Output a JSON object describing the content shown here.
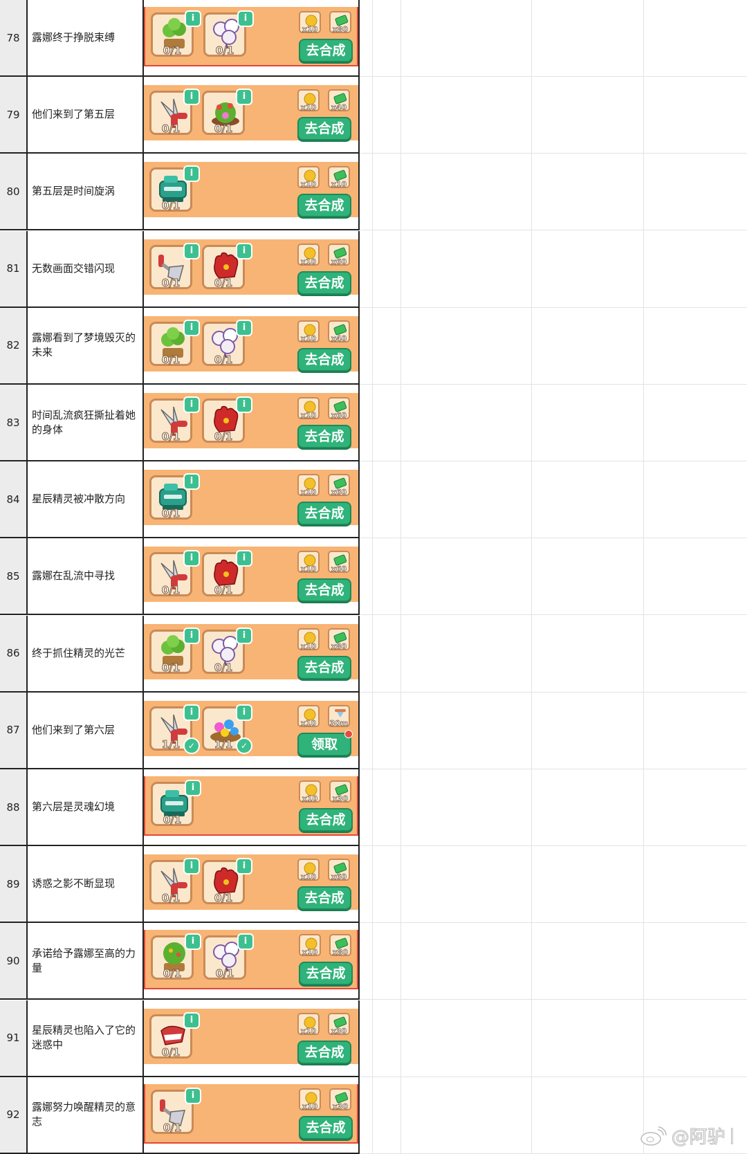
{
  "colors": {
    "panel": "#f8b474",
    "button": "#2fb37a",
    "info_badge": "#3dc08f",
    "alert_border": "#e0473a"
  },
  "rows": [
    {
      "num": "78",
      "title": "露娜终于挣脱束缚",
      "alert": true,
      "items": [
        {
          "icon": "potted-plant",
          "progress": "0/1"
        },
        {
          "icon": "balloons",
          "progress": "0/1"
        }
      ],
      "rewards": [
        {
          "icon": "gold-coin",
          "label": "x10"
        },
        {
          "icon": "cash",
          "label": "x80"
        }
      ],
      "button": "去合成"
    },
    {
      "num": "79",
      "title": "他们来到了第五层",
      "items": [
        {
          "icon": "scissors",
          "progress": "0/1"
        },
        {
          "icon": "flower-bush",
          "progress": "0/1"
        }
      ],
      "rewards": [
        {
          "icon": "gold-coin",
          "label": "x10"
        },
        {
          "icon": "cash",
          "label": "x40"
        }
      ],
      "button": "去合成"
    },
    {
      "num": "80",
      "title": "第五层是时间旋涡",
      "items": [
        {
          "icon": "machine",
          "progress": "0/1"
        }
      ],
      "rewards": [
        {
          "icon": "gold-coin",
          "label": "x10"
        },
        {
          "icon": "cash",
          "label": "x10"
        }
      ],
      "button": "去合成"
    },
    {
      "num": "81",
      "title": "无数画面交错闪现",
      "items": [
        {
          "icon": "rake",
          "progress": "0/1"
        },
        {
          "icon": "glove",
          "progress": "0/1"
        }
      ],
      "rewards": [
        {
          "icon": "gold-coin",
          "label": "x10"
        },
        {
          "icon": "cash",
          "label": "x60"
        }
      ],
      "button": "去合成"
    },
    {
      "num": "82",
      "title": "露娜看到了梦境毁灭的未来",
      "items": [
        {
          "icon": "potted-plant",
          "progress": "0/1"
        },
        {
          "icon": "balloons",
          "progress": "0/1"
        }
      ],
      "rewards": [
        {
          "icon": "gold-coin",
          "label": "x10"
        },
        {
          "icon": "cash",
          "label": "x40"
        }
      ],
      "button": "去合成"
    },
    {
      "num": "83",
      "title": "时间乱流疯狂撕扯着她的身体",
      "items": [
        {
          "icon": "scissors",
          "progress": "0/1"
        },
        {
          "icon": "glove",
          "progress": "0/1"
        }
      ],
      "rewards": [
        {
          "icon": "gold-coin",
          "label": "x10"
        },
        {
          "icon": "cash",
          "label": "x60"
        }
      ],
      "button": "去合成"
    },
    {
      "num": "84",
      "title": "星辰精灵被冲散方向",
      "items": [
        {
          "icon": "machine",
          "progress": "0/1"
        }
      ],
      "rewards": [
        {
          "icon": "gold-coin",
          "label": "x10"
        },
        {
          "icon": "cash",
          "label": "x60"
        }
      ],
      "button": "去合成"
    },
    {
      "num": "85",
      "title": "露娜在乱流中寻找",
      "items": [
        {
          "icon": "scissors",
          "progress": "0/1"
        },
        {
          "icon": "glove",
          "progress": "0/1"
        }
      ],
      "rewards": [
        {
          "icon": "gold-coin",
          "label": "x10"
        },
        {
          "icon": "cash",
          "label": "x60"
        }
      ],
      "button": "去合成"
    },
    {
      "num": "86",
      "title": "终于抓住精灵的光芒",
      "items": [
        {
          "icon": "potted-plant",
          "progress": "0/1"
        },
        {
          "icon": "balloons",
          "progress": "0/1"
        }
      ],
      "rewards": [
        {
          "icon": "gold-coin",
          "label": "x10"
        },
        {
          "icon": "cash",
          "label": "x80"
        }
      ],
      "button": "去合成"
    },
    {
      "num": "87",
      "title": "他们来到了第六层",
      "items": [
        {
          "icon": "scissors",
          "progress": "1/1",
          "done": true
        },
        {
          "icon": "flower-basket",
          "progress": "1/1",
          "done": true
        }
      ],
      "rewards": [
        {
          "icon": "gold-coin",
          "label": "x10"
        },
        {
          "icon": "hourglass",
          "label": "30m"
        }
      ],
      "button": "领取",
      "notify": true
    },
    {
      "num": "88",
      "title": "第六层是灵魂幻境",
      "alert": true,
      "items": [
        {
          "icon": "machine",
          "progress": "0/1"
        }
      ],
      "rewards": [
        {
          "icon": "gold-coin",
          "label": "x10"
        },
        {
          "icon": "cash",
          "label": "x30"
        }
      ],
      "button": "去合成"
    },
    {
      "num": "89",
      "title": "诱惑之影不断显现",
      "items": [
        {
          "icon": "scissors",
          "progress": "0/1"
        },
        {
          "icon": "glove",
          "progress": "0/1"
        }
      ],
      "rewards": [
        {
          "icon": "gold-coin",
          "label": "x10"
        },
        {
          "icon": "cash",
          "label": "x60"
        }
      ],
      "button": "去合成"
    },
    {
      "num": "90",
      "title": "承诺给予露娜至高的力量",
      "alert": true,
      "items": [
        {
          "icon": "fruit-tree",
          "progress": "0/1"
        },
        {
          "icon": "balloons",
          "progress": "0/1"
        }
      ],
      "rewards": [
        {
          "icon": "gold-coin",
          "label": "x10"
        },
        {
          "icon": "cash",
          "label": "x80"
        }
      ],
      "button": "去合成"
    },
    {
      "num": "91",
      "title": "星辰精灵也陷入了它的迷惑中",
      "items": [
        {
          "icon": "glove-white",
          "progress": "0/1"
        }
      ],
      "rewards": [
        {
          "icon": "gold-coin",
          "label": "x10"
        },
        {
          "icon": "cash",
          "label": "x30"
        }
      ],
      "button": "去合成"
    },
    {
      "num": "92",
      "title": "露娜努力唤醒精灵的意志",
      "alert": true,
      "items": [
        {
          "icon": "rake",
          "progress": "0/1"
        }
      ],
      "rewards": [
        {
          "icon": "gold-coin",
          "label": "x10"
        },
        {
          "icon": "cash",
          "label": "x30"
        }
      ],
      "button": "去合成"
    }
  ],
  "info_glyph": "i",
  "check_glyph": "✓",
  "watermark": "@阿驴"
}
